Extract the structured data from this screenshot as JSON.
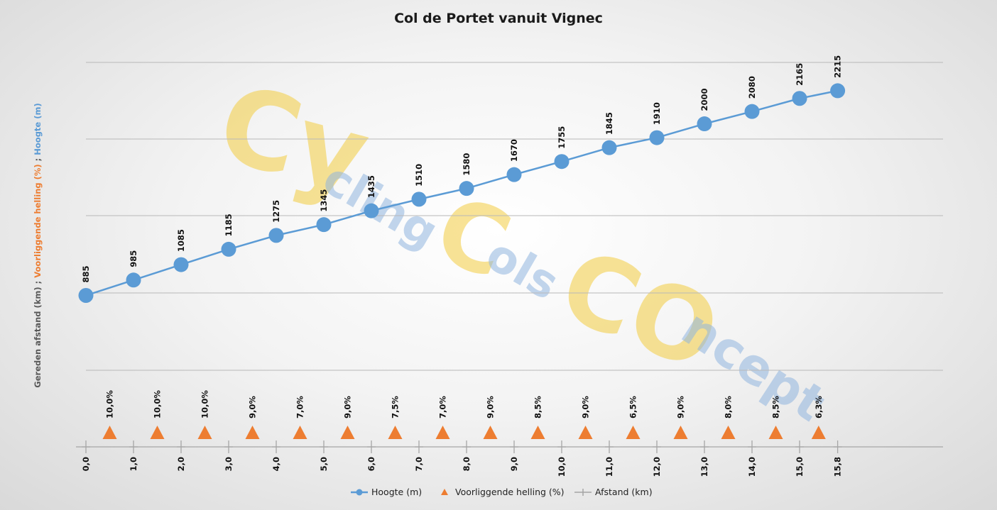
{
  "chart_data": {
    "type": "line",
    "title": "Col de Portet vanuit Vignec",
    "ylabel_parts": [
      {
        "text": "Gereden afstand (km)  ;  ",
        "color": "#595959"
      },
      {
        "text": "Voorliggende helling (%)",
        "color": "#ed7d31"
      },
      {
        "text": "  ;  ",
        "color": "#595959"
      },
      {
        "text": "Hoogte (m)",
        "color": "#5b9bd5"
      }
    ],
    "x": [
      0.0,
      1.0,
      2.0,
      3.0,
      4.0,
      5.0,
      6.0,
      7.0,
      8.0,
      9.0,
      10.0,
      11.0,
      12.0,
      13.0,
      14.0,
      15.0,
      15.8
    ],
    "x_tick_labels": [
      "0,0",
      "1,0",
      "2,0",
      "3,0",
      "4,0",
      "5,0",
      "6,0",
      "7,0",
      "8,0",
      "9,0",
      "10,0",
      "11,0",
      "12,0",
      "13,0",
      "14,0",
      "15,0",
      "15,8"
    ],
    "series": [
      {
        "name": "Hoogte (m)",
        "type": "line",
        "color": "#5b9bd5",
        "x": [
          0.0,
          1.0,
          2.0,
          3.0,
          4.0,
          5.0,
          6.0,
          7.0,
          8.0,
          9.0,
          10.0,
          11.0,
          12.0,
          13.0,
          14.0,
          15.0,
          15.8
        ],
        "values": [
          885,
          985,
          1085,
          1185,
          1275,
          1345,
          1435,
          1510,
          1580,
          1670,
          1755,
          1845,
          1910,
          2000,
          2080,
          2165,
          2215
        ],
        "labels": [
          "885",
          "985",
          "1085",
          "1185",
          "1275",
          "1345",
          "1435",
          "1510",
          "1580",
          "1670",
          "1755",
          "1845",
          "1910",
          "2000",
          "2080",
          "2165",
          "2215"
        ]
      },
      {
        "name": "Voorliggende helling (%)",
        "type": "scatter",
        "marker": "triangle",
        "color": "#ed7d31",
        "x": [
          0.5,
          1.5,
          2.5,
          3.5,
          4.5,
          5.5,
          6.5,
          7.5,
          8.5,
          9.5,
          10.5,
          11.5,
          12.5,
          13.5,
          14.5,
          15.4
        ],
        "values": [
          10.0,
          10.0,
          10.0,
          9.0,
          7.0,
          9.0,
          7.5,
          7.0,
          9.0,
          8.5,
          9.0,
          6.5,
          9.0,
          8.0,
          8.5,
          6.3
        ],
        "labels": [
          "10,0%",
          "10,0%",
          "10,0%",
          "9,0%",
          "7,0%",
          "9,0%",
          "7,5%",
          "7,0%",
          "9,0%",
          "8,5%",
          "9,0%",
          "6,5%",
          "9,0%",
          "8,0%",
          "8,5%",
          "6,3%"
        ]
      },
      {
        "name": "Afstand (km)",
        "type": "line",
        "marker": "plus",
        "color": "#a5a5a5",
        "x": [
          0.0,
          1.0,
          2.0,
          3.0,
          4.0,
          5.0,
          6.0,
          7.0,
          8.0,
          9.0,
          10.0,
          11.0,
          12.0,
          13.0,
          14.0,
          15.0,
          15.8
        ]
      }
    ],
    "gridlines": true,
    "legend_position": "bottom"
  },
  "watermark": {
    "word1": "Cy",
    "word2": "cling",
    "word3": "C",
    "word4": "ols",
    "word5": "CO",
    "word6": "ncept",
    "yellow": "#f2cc3f",
    "blue": "#8fb4df"
  }
}
